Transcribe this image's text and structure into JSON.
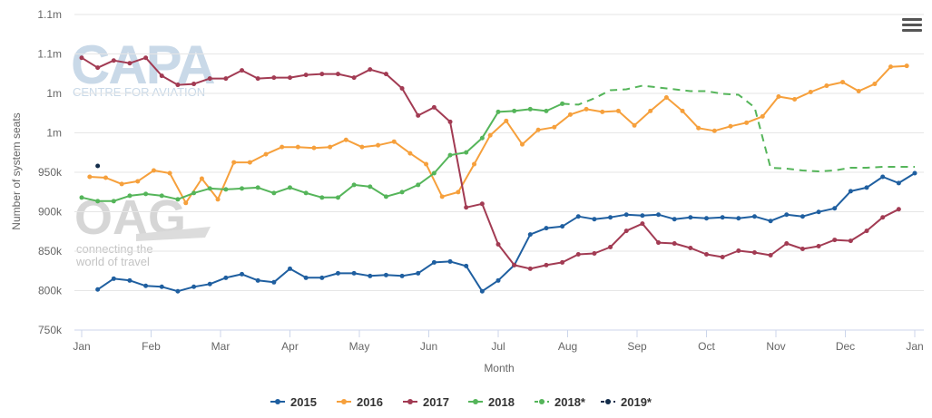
{
  "watermark": {
    "capa_title": "CAPA",
    "capa_subtitle": "CENTRE FOR AVIATION",
    "oag_title": "OAG",
    "oag_tagline_1": "connecting the",
    "oag_tagline_2": "world of travel"
  },
  "menu_icon": "hamburger-menu-icon",
  "chart_data": {
    "type": "line",
    "title": "",
    "xlabel": "Month",
    "ylabel": "Number of system seats",
    "x_ticks": [
      "Jan",
      "Feb",
      "Mar",
      "Apr",
      "May",
      "Jun",
      "Jul",
      "Aug",
      "Sep",
      "Oct",
      "Nov",
      "Dec",
      "Jan"
    ],
    "y_ticks": [
      "750k",
      "800k",
      "850k",
      "900k",
      "950k",
      "1m",
      "1m",
      "1.1m",
      "1.1m"
    ],
    "ylim": [
      750000,
      1100000
    ],
    "xlim": [
      0,
      52
    ],
    "x_unit": "week of year",
    "grid": true,
    "legend_position": "bottom",
    "series": [
      {
        "name": "2015",
        "color": "#1f5fa0",
        "dashed": false,
        "start_week": 1,
        "values": [
          795000,
          807000,
          805000,
          799000,
          798000,
          793000,
          798000,
          801000,
          808000,
          812000,
          805000,
          803000,
          818000,
          808000,
          808000,
          813000,
          813000,
          810000,
          811000,
          810000,
          813000,
          825000,
          826000,
          821000,
          793000,
          805000,
          822000,
          856000,
          863000,
          865000,
          876000,
          873000,
          875000,
          878000,
          877000,
          878000,
          873000,
          875000,
          874000,
          875000,
          874000,
          876000,
          871000,
          878000,
          876000,
          881000,
          885000,
          904000,
          908000,
          920000,
          913000,
          924000
        ]
      },
      {
        "name": "2016",
        "color": "#f6a03c",
        "dashed": false,
        "start_week": 0.5,
        "values": [
          920000,
          919000,
          912000,
          915000,
          927000,
          924000,
          891000,
          918000,
          895000,
          936000,
          936000,
          945000,
          953000,
          953000,
          952000,
          953000,
          961000,
          953000,
          955000,
          959000,
          946000,
          934000,
          898000,
          903000,
          934000,
          966000,
          982000,
          956000,
          972000,
          975000,
          989000,
          995000,
          992000,
          993000,
          977000,
          993000,
          1008000,
          993000,
          974000,
          971000,
          976000,
          980000,
          987000,
          1009000,
          1006000,
          1014000,
          1021000,
          1025000,
          1015000,
          1023000,
          1042000,
          1043000
        ]
      },
      {
        "name": "2017",
        "color": "#a23b53",
        "dashed": false,
        "start_week": 0,
        "values": [
          1052000,
          1041000,
          1049000,
          1046000,
          1052000,
          1032000,
          1022000,
          1023000,
          1029000,
          1029000,
          1038000,
          1029000,
          1030000,
          1030000,
          1033000,
          1034000,
          1034000,
          1030000,
          1039000,
          1034000,
          1018000,
          988000,
          997000,
          981000,
          886000,
          890000,
          845000,
          822000,
          818000,
          822000,
          825000,
          834000,
          835000,
          842000,
          860000,
          868000,
          847000,
          846000,
          841000,
          834000,
          831000,
          838000,
          836000,
          833000,
          846000,
          840000,
          843000,
          850000,
          849000,
          860000,
          875000,
          884000
        ]
      },
      {
        "name": "2018",
        "color": "#55b55a",
        "dashed": false,
        "start_week": 0,
        "values": [
          897000,
          893000,
          893000,
          899000,
          901000,
          899000,
          895000,
          902000,
          907000,
          906000,
          907000,
          908000,
          902000,
          908000,
          902000,
          897000,
          897000,
          911000,
          909000,
          898000,
          903000,
          911000,
          924000,
          944000,
          947000,
          963000,
          992000,
          993000,
          995000,
          993000,
          1001000
        ]
      },
      {
        "name": "2018*",
        "color": "#55b55a",
        "dashed": true,
        "start_week": 30,
        "values": [
          1001000,
          1000000,
          1007000,
          1016000,
          1017000,
          1021000,
          1019000,
          1017000,
          1015000,
          1015000,
          1012000,
          1011000,
          997000,
          930000,
          929000,
          927000,
          926000,
          927000,
          930000,
          930000,
          931000,
          931000,
          931000
        ]
      },
      {
        "name": "2019*",
        "color": "#122c4a",
        "dashed": true,
        "start_week": 1,
        "values": [
          932000
        ]
      }
    ]
  }
}
